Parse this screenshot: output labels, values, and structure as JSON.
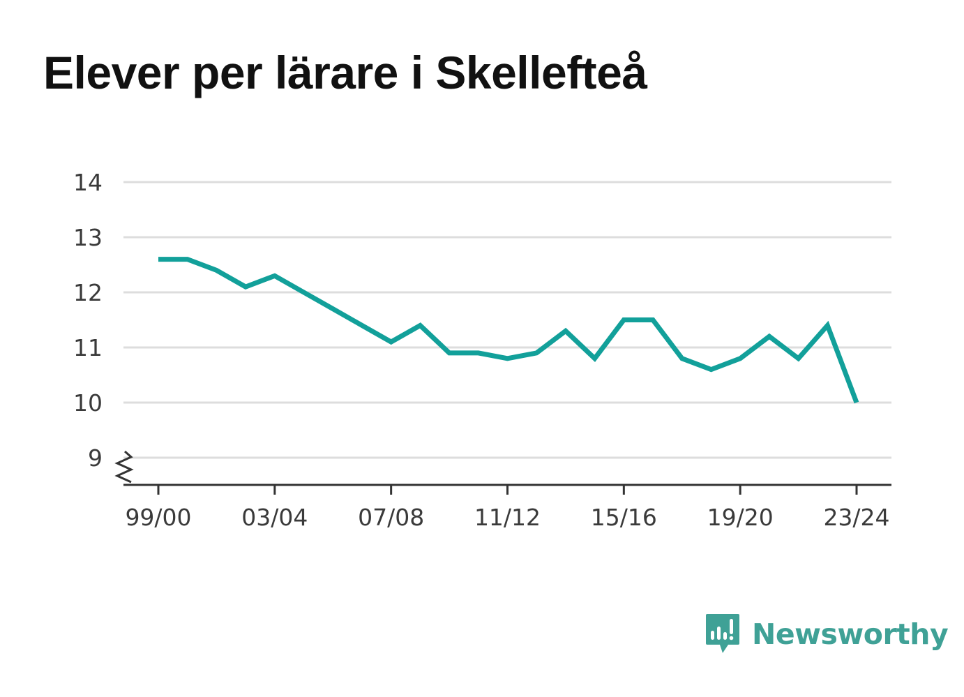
{
  "title": "Elever per lärare i Skellefteå",
  "brand": {
    "name": "Newsworthy",
    "color": "#3fa196",
    "icon": "newsworthy-logo-icon"
  },
  "chart_data": {
    "type": "line",
    "title": "Elever per lärare i Skellefteå",
    "xlabel": "",
    "ylabel": "",
    "line_color": "#12a09a",
    "grid": true,
    "axis_break": true,
    "ylim": [
      9,
      14
    ],
    "yticks": [
      9,
      10,
      11,
      12,
      13,
      14
    ],
    "x_tick_labels": [
      "99/00",
      "03/04",
      "07/08",
      "11/12",
      "15/16",
      "19/20",
      "23/24"
    ],
    "categories": [
      "99/00",
      "00/01",
      "01/02",
      "02/03",
      "03/04",
      "04/05",
      "05/06",
      "06/07",
      "07/08",
      "08/09",
      "09/10",
      "10/11",
      "11/12",
      "12/13",
      "13/14",
      "14/15",
      "15/16",
      "16/17",
      "17/18",
      "18/19",
      "19/20",
      "20/21",
      "21/22",
      "22/23",
      "23/24"
    ],
    "values": [
      12.6,
      12.6,
      12.4,
      12.1,
      12.3,
      12.0,
      11.7,
      11.4,
      11.1,
      11.4,
      10.9,
      10.9,
      10.8,
      10.9,
      11.3,
      10.8,
      11.5,
      11.5,
      10.8,
      10.6,
      10.8,
      11.2,
      10.8,
      11.4,
      10.0
    ]
  }
}
